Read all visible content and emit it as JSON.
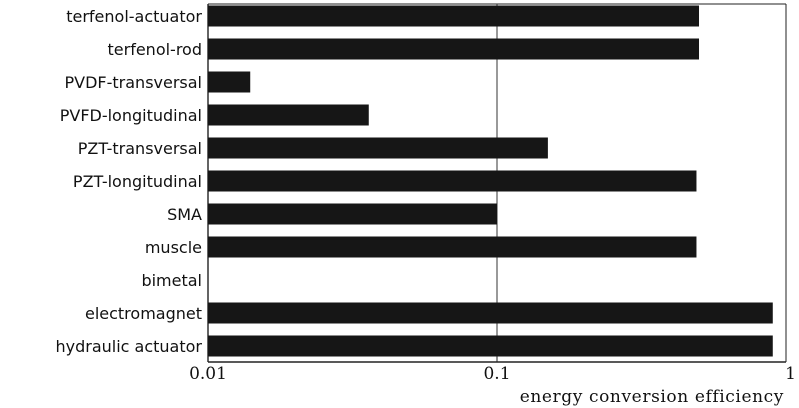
{
  "chart_data": {
    "type": "bar",
    "orientation": "horizontal",
    "x_scale": "log",
    "xlim": [
      0.01,
      1
    ],
    "xticks": [
      "0.01",
      "0.1",
      "1"
    ],
    "xlabel": "energy conversion efficiency",
    "title": "",
    "ylabel": "",
    "grid": false,
    "legend": "none",
    "bar_color": "#161616",
    "categories": [
      "terfenol-actuator",
      "terfenol-rod",
      "PVDF-transversal",
      "PVFD-longitudinal",
      "PZT-transversal",
      "PZT-longitudinal",
      "SMA",
      "muscle",
      "bimetal",
      "electromagnet",
      "hydraulic actuator"
    ],
    "values": [
      0.5,
      0.5,
      0.014,
      0.036,
      0.15,
      0.49,
      0.1,
      0.49,
      null,
      0.9,
      0.9
    ]
  }
}
